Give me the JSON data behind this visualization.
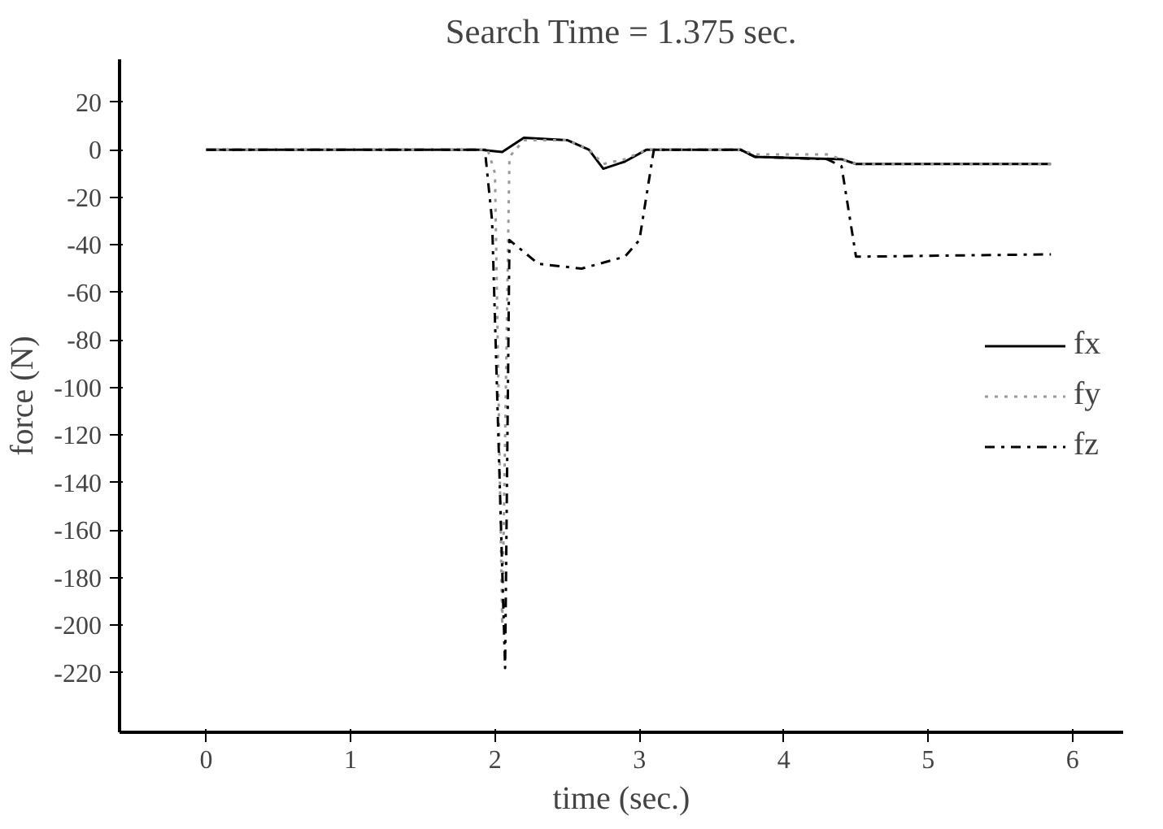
{
  "chart_data": {
    "type": "line",
    "title": "Search Time = 1.375 sec.",
    "xlabel": "time (sec.)",
    "ylabel": "force (N)",
    "xlim": [
      -0.6,
      6.35
    ],
    "ylim": [
      -245,
      38
    ],
    "xticks": [
      0,
      1,
      2,
      3,
      4,
      5,
      6
    ],
    "yticks": [
      20,
      0,
      -20,
      -40,
      -60,
      -80,
      -100,
      -120,
      -140,
      -160,
      -180,
      -200,
      -220
    ],
    "grid": false,
    "legend": "right",
    "marker": "none",
    "series": [
      {
        "name": "fx",
        "color": "#000000",
        "line_style": "solid",
        "x": [
          0,
          1,
          1.9,
          2.05,
          2.2,
          2.5,
          2.65,
          2.75,
          2.9,
          3.05,
          3.7,
          3.8,
          4.4,
          4.5,
          5.85
        ],
        "values": [
          0,
          0,
          0,
          -1,
          5,
          4,
          0,
          -8,
          -5,
          0,
          0,
          -3,
          -4,
          -6,
          -6
        ]
      },
      {
        "name": "fy",
        "color": "#999999",
        "line_style": "dotted",
        "x": [
          0,
          1,
          1.95,
          2.0,
          2.05,
          2.1,
          2.2,
          2.5,
          2.65,
          2.75,
          2.9,
          3.05,
          3.7,
          3.8,
          4.3,
          4.4,
          4.5,
          5.85
        ],
        "values": [
          0,
          0,
          0,
          -10,
          -200,
          -3,
          4,
          4,
          0,
          -6,
          -4,
          0,
          0,
          -2,
          -2,
          -4,
          -6,
          -6
        ]
      },
      {
        "name": "fz",
        "color": "#000000",
        "line_style": "dashdot",
        "x": [
          0,
          1,
          1.93,
          1.98,
          2.07,
          2.1,
          2.3,
          2.6,
          2.9,
          3.0,
          3.1,
          3.7,
          3.8,
          4.3,
          4.4,
          4.5,
          5.85
        ],
        "values": [
          0,
          0,
          0,
          -30,
          -218,
          -38,
          -48,
          -50,
          -45,
          -38,
          0,
          0,
          -3,
          -4,
          -7,
          -45,
          -44
        ]
      }
    ]
  }
}
